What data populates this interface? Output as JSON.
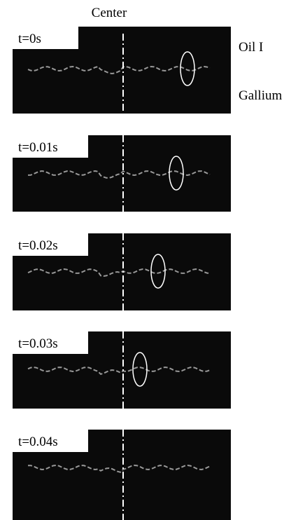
{
  "labels": {
    "center": "Center",
    "oil": "Oil I",
    "gallium": "Gallium"
  },
  "panels": [
    {
      "time": "t=0s"
    },
    {
      "time": "t=0.01s"
    },
    {
      "time": "t=0.02s"
    },
    {
      "time": "t=0.03s"
    },
    {
      "time": "t=0.04s"
    }
  ]
}
